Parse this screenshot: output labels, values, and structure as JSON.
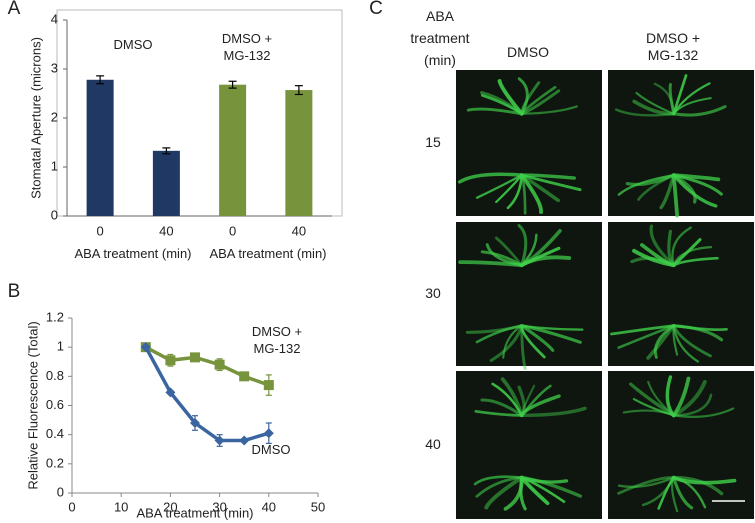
{
  "panel_labels": [
    "A",
    "B",
    "C"
  ],
  "chart_data": [
    {
      "type": "bar",
      "categories": [
        "0",
        "40",
        "0",
        "40"
      ],
      "values": [
        2.78,
        1.33,
        2.68,
        2.57
      ],
      "errors": [
        0.08,
        0.06,
        0.07,
        0.09
      ],
      "colors": [
        "#1f3864",
        "#1f3864",
        "#77933c",
        "#77933c"
      ],
      "ylim": [
        0,
        4
      ],
      "yticks": [
        0,
        1,
        2,
        3,
        4
      ],
      "ylabel": "Stomatal Aperture (microns)",
      "xlabels": [
        "ABA treatment (min)",
        "ABA treatment (min)"
      ],
      "group_labels": [
        "DMSO",
        "DMSO + MG-132"
      ]
    },
    {
      "type": "line",
      "x": [
        15,
        20,
        25,
        30,
        35,
        40
      ],
      "series": [
        {
          "name": "DMSO + MG-132",
          "color": "#77933c",
          "marker": "square",
          "values": [
            1,
            0.91,
            0.93,
            0.88,
            0.8,
            0.74
          ],
          "errors": [
            0.02,
            0.04,
            0.02,
            0.04,
            0.02,
            0.07
          ]
        },
        {
          "name": "DMSO",
          "color": "#3a65a0",
          "marker": "diamond",
          "values": [
            1,
            0.69,
            0.48,
            0.36,
            0.36,
            0.41
          ],
          "errors": [
            0.01,
            0.01,
            0.05,
            0.04,
            0.01,
            0.07
          ]
        }
      ],
      "xlim": [
        0,
        50
      ],
      "xticks": [
        0,
        10,
        20,
        30,
        40,
        50
      ],
      "ylim": [
        0,
        1.2
      ],
      "yticks": [
        0,
        0.2,
        0.4,
        0.6,
        0.8,
        1,
        1.2
      ],
      "xlabel": "ABA treatment (min)",
      "ylabel": "Relative Fluorescence (Total)"
    }
  ],
  "panel_c": {
    "header": [
      "ABA",
      "treatment",
      "(min)"
    ],
    "columns": [
      "DMSO",
      "DMSO + MG-132"
    ],
    "rows": [
      "15",
      "30",
      "40"
    ]
  }
}
